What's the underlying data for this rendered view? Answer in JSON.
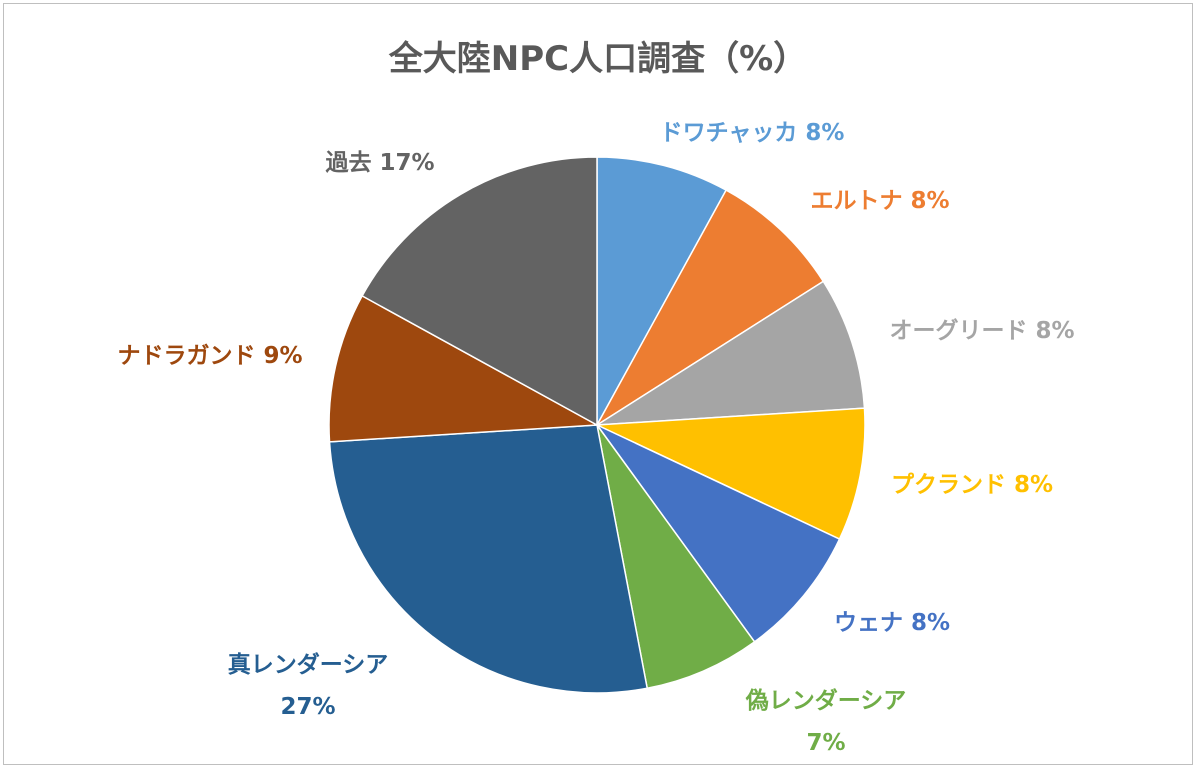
{
  "chart_data": {
    "type": "pie",
    "title": "全大陸NPC人口調査（%）",
    "slices": [
      {
        "label": "ドワチャッカ",
        "value": 8,
        "display": "8%",
        "color": "#5B9BD5"
      },
      {
        "label": "エルトナ",
        "value": 8,
        "display": "8%",
        "color": "#ED7D31"
      },
      {
        "label": "オーグリード",
        "value": 8,
        "display": "8%",
        "color": "#A5A5A5"
      },
      {
        "label": "プクランド",
        "value": 8,
        "display": "8%",
        "color": "#FFC000"
      },
      {
        "label": "ウェナ",
        "value": 8,
        "display": "8%",
        "color": "#4472C4"
      },
      {
        "label": "偽レンダーシア",
        "value": 7,
        "display": "7%",
        "color": "#70AD47"
      },
      {
        "label": "真レンダーシア",
        "value": 27,
        "display": "27%",
        "color": "#255E91"
      },
      {
        "label": "ナドラガンド",
        "value": 9,
        "display": "9%",
        "color": "#9E480E"
      },
      {
        "label": "過去",
        "value": 17,
        "display": "17%",
        "color": "#636363"
      }
    ],
    "legend": "none",
    "start_angle": "12 o'clock, clockwise"
  }
}
